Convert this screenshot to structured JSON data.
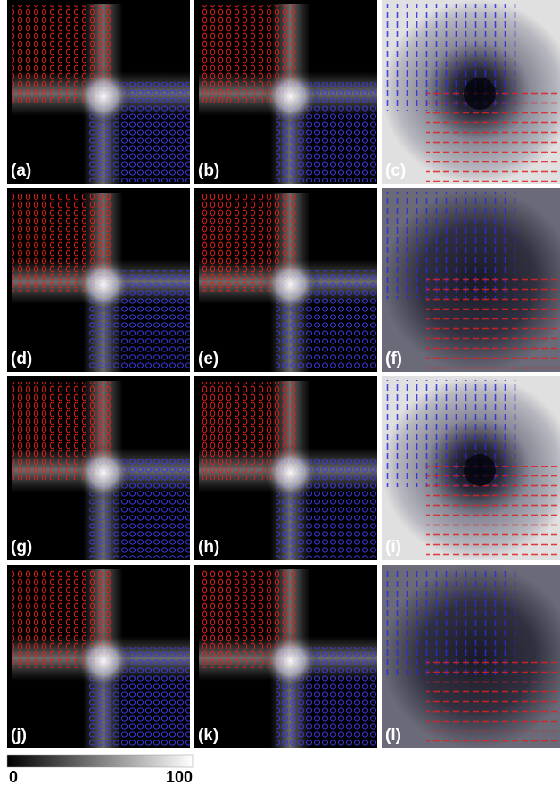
{
  "panels": [
    "(a)",
    "(b)",
    "(c)",
    "(d)",
    "(e)",
    "(f)",
    "(g)",
    "(h)",
    "(i)",
    "(j)",
    "(k)",
    "(l)"
  ],
  "colorbar": {
    "min": "0",
    "max": "100"
  }
}
